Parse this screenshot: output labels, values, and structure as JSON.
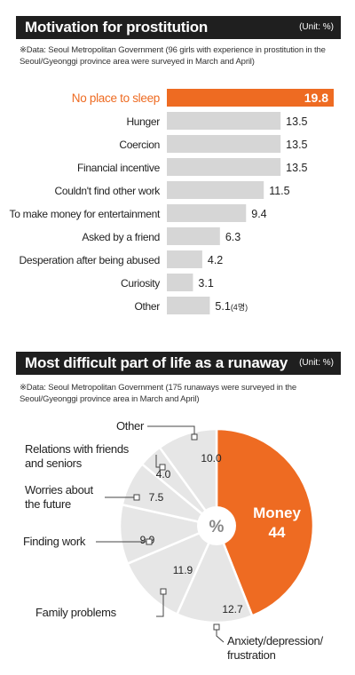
{
  "chart_data": [
    {
      "type": "bar",
      "title": "Motivation for prostitution",
      "unit": "(Unit: %)",
      "source": "※Data: Seoul Metropolitan Government (96 girls with experience in prostitution in the Seoul/Gyeonggi province area were surveyed in March and April)",
      "categories": [
        "No place to sleep",
        "Hunger",
        "Coercion",
        "Financial incentive",
        "Couldn't find other work",
        "To make money for entertainment",
        "Asked by a friend",
        "Desperation after being abused",
        "Curiosity",
        "Other"
      ],
      "value_labels": [
        "19.8",
        "13.5",
        "13.5",
        "13.5",
        "11.5",
        "9.4",
        "6.3",
        "4.2",
        "3.1",
        "5.1"
      ],
      "values": [
        19.8,
        13.5,
        13.5,
        13.5,
        11.5,
        9.4,
        6.3,
        4.2,
        3.1,
        5.1
      ],
      "other_note": "(4명)",
      "highlight_color": "#ee6b22",
      "bar_color": "#d6d6d6"
    },
    {
      "type": "pie",
      "title": "Most difficult part of life as a runaway",
      "unit": "(Unit: %)",
      "source": "※Data: Seoul Metropolitan Government (175 runaways were surveyed in the Seoul/Gyeonggi province area in March and April)",
      "center_label": "%",
      "slices": [
        {
          "label": "Money",
          "value": 44,
          "value_label": "44",
          "color": "#ee6b22"
        },
        {
          "label": "Anxiety/depression/ frustration",
          "value": 12.7,
          "value_label": "12.7",
          "color": "#e6e6e6"
        },
        {
          "label": "Family problems",
          "value": 11.9,
          "value_label": "11.9",
          "color": "#e6e6e6"
        },
        {
          "label": "Finding work",
          "value": 9.9,
          "value_label": "9.9",
          "color": "#e6e6e6"
        },
        {
          "label": "Worries about the future",
          "value": 7.5,
          "value_label": "7.5",
          "color": "#e6e6e6"
        },
        {
          "label": "Relations with friends and seniors",
          "value": 4.0,
          "value_label": "4.0",
          "color": "#e6e6e6"
        },
        {
          "label": "Other",
          "value": 10.0,
          "value_label": "10.0",
          "color": "#e6e6e6"
        }
      ]
    }
  ]
}
